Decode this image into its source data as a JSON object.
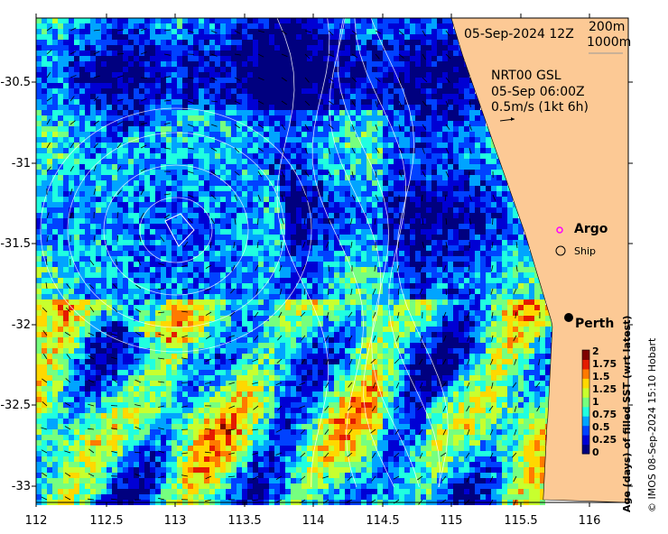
{
  "map": {
    "title_date": "05-Sep-2024 12Z",
    "contour_legend": {
      "line1": "200m",
      "line2": "1000m"
    },
    "current_info": {
      "line1": "NRT00 GSL",
      "line2": "05-Sep 06:00Z",
      "line3": "0.5m/s (1kt 6h)"
    },
    "markers": {
      "argo": "Argo",
      "ship": "Ship",
      "city": "Perth"
    },
    "y_ticks": [
      "-30.5",
      "-31",
      "-31.5",
      "-32",
      "-32.5",
      "-33"
    ],
    "x_ticks": [
      "112",
      "112.5",
      "113",
      "113.5",
      "114",
      "114.5",
      "115",
      "115.5",
      "116"
    ],
    "colorbar": {
      "ticks": [
        "2",
        "1.75",
        "1.5",
        "1.25",
        "1",
        "0.75",
        "0.5",
        "0.25",
        "0"
      ],
      "label": "Age (days) of filled SST (wrt latest)",
      "colors": [
        "#00007f",
        "#0000d4",
        "#0042ff",
        "#00a4ff",
        "#20ffe0",
        "#76ff7f",
        "#c8ff2e",
        "#ffd800",
        "#ff7a00",
        "#e41b00",
        "#7f0000"
      ]
    },
    "credit": "© IMOS 08-Sep-2024 15:10 Hobart",
    "land_color": "#fcc995",
    "argo_color": "#ff00ff"
  }
}
